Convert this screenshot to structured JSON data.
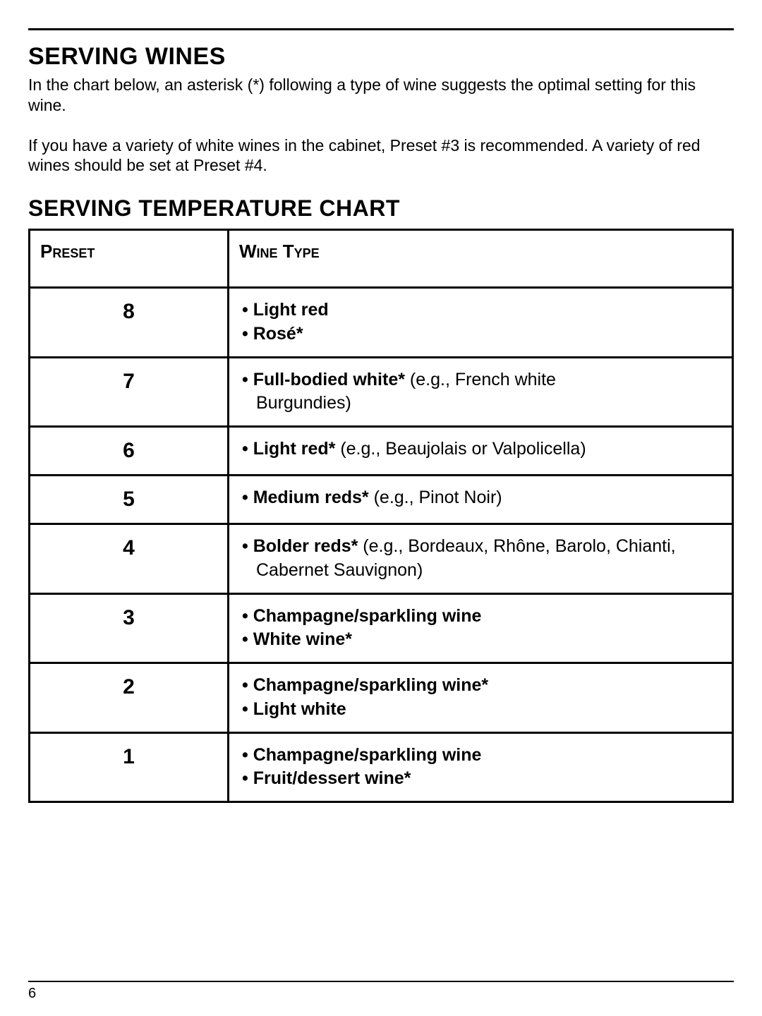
{
  "page": {
    "number": "6",
    "colors": {
      "text": "#000000",
      "background": "#ffffff",
      "rule": "#000000",
      "table_border": "#000000"
    },
    "ruleThicknessPx": 3,
    "bottomRuleThicknessPx": 2
  },
  "section": {
    "title": "SERVING WINES",
    "para1": "In the chart below, an asterisk (*) following a type of wine suggests the optimal setting for this wine.",
    "para2": "If you have a variety of white wines in the cabinet, Preset #3 is recommended. A variety of red wines should be set at Preset #4.",
    "fontSizes": {
      "title": 34,
      "body": 23
    }
  },
  "chart": {
    "title": "SERVING TEMPERATURE CHART",
    "columns": [
      "Preset",
      "Wine Type"
    ],
    "columnWidthsPx": [
      282,
      718
    ],
    "fontSizes": {
      "title": 32,
      "header": 26,
      "preset": 30,
      "body": 25
    },
    "rows": [
      {
        "preset": "8",
        "items": [
          {
            "bold": "Light red"
          },
          {
            "bold": "Rosé*"
          }
        ]
      },
      {
        "preset": "7",
        "items": [
          {
            "bold": "Full-bodied white*",
            "note": " (e.g., French white",
            "wrapNote": "Burgundies)"
          }
        ]
      },
      {
        "preset": "6",
        "extraPad": true,
        "items": [
          {
            "bold": "Light red*",
            "note": " (e.g., Beaujolais or Valpolicella)"
          }
        ]
      },
      {
        "preset": "5",
        "extraPad": true,
        "items": [
          {
            "bold": "Medium reds*",
            "note": " (e.g., Pinot Noir)"
          }
        ]
      },
      {
        "preset": "4",
        "items": [
          {
            "bold": "Bolder reds*",
            "note": " (e.g., Bordeaux, Rhône, Barolo, Chianti,",
            "wrapNote": "Cabernet Sauvignon)"
          }
        ]
      },
      {
        "preset": "3",
        "items": [
          {
            "bold": "Champagne/sparkling wine"
          },
          {
            "bold": "White wine*"
          }
        ]
      },
      {
        "preset": "2",
        "items": [
          {
            "bold": "Champagne/sparkling wine*"
          },
          {
            "bold": "Light white"
          }
        ]
      },
      {
        "preset": "1",
        "items": [
          {
            "bold": "Champagne/sparkling wine"
          },
          {
            "bold": "Fruit/dessert wine*"
          }
        ]
      }
    ]
  }
}
